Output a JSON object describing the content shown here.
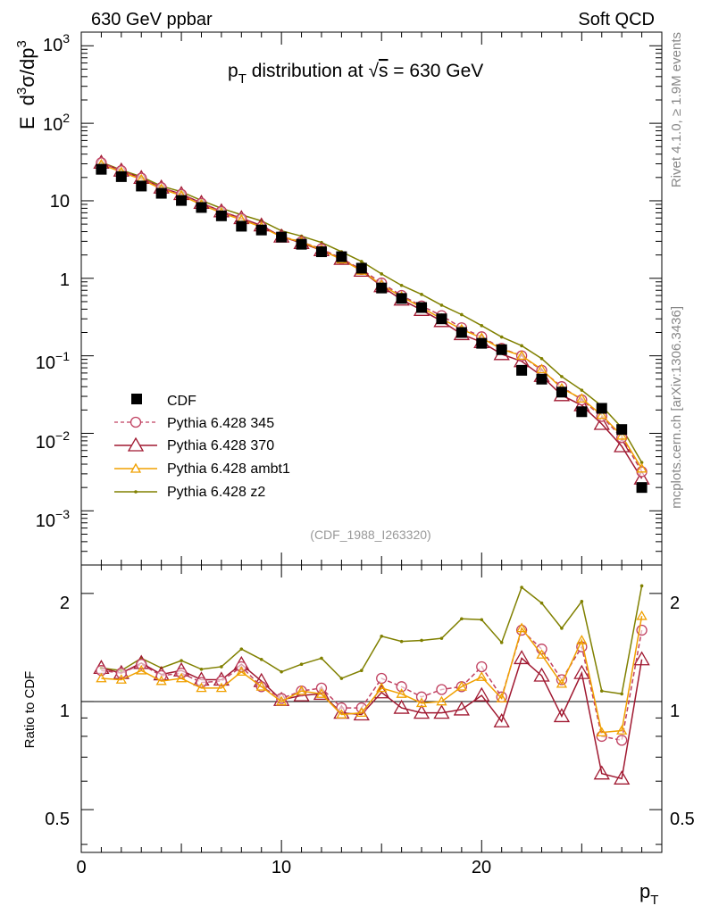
{
  "header": {
    "left": "630 GeV ppbar",
    "right": "Soft QCD"
  },
  "side_labels": {
    "rivet": "Rivet 4.1.0, ≥ 1.9M events",
    "mcplots": "mcplots.cern.ch [arXiv:1306.3436]"
  },
  "chart_data": [
    {
      "type": "line",
      "title": "p_T distribution at √s = 630 GeV",
      "title_parts": {
        "p": "p",
        "T": "T",
        "mid": " distribution at ",
        "sqrt": "√",
        "s": "s",
        "end": " = 630 GeV"
      },
      "ylabel": "E  d³σ/dp³",
      "ylabel_parts": {
        "E": "E",
        "d1": "d",
        "e1": "3",
        "sig": "σ/dp",
        "e2": "3"
      },
      "yscale": "log",
      "ylim": [
        0.0002,
        1500
      ],
      "xlim": [
        0,
        29
      ],
      "y_tick_labels": [
        "10^-3",
        "10^-2",
        "10^-1",
        "1",
        "10",
        "10^2",
        "10^3"
      ],
      "y_tick_text": {
        "p3": "10",
        "p3e": "3",
        "p2": "10",
        "p2e": "2",
        "p1": "10",
        "one": "1",
        "m1": "10",
        "m1e": "−1",
        "m2": "10",
        "m2e": "−2",
        "m3": "10",
        "m3e": "−3"
      },
      "annotation": "(CDF_1988_I263320)",
      "legend_position": "left",
      "x": [
        1,
        2,
        3,
        4,
        5,
        6,
        7,
        8,
        9,
        10,
        11,
        12,
        13,
        14,
        15,
        16,
        17,
        18,
        19,
        20,
        21,
        22,
        23,
        24,
        25,
        26,
        27,
        28
      ],
      "series": [
        {
          "name": "CDF",
          "color": "#000000",
          "marker": "square",
          "values": [
            25.5,
            20.5,
            15.5,
            12.5,
            10.1,
            8.2,
            6.4,
            4.7,
            4.2,
            3.4,
            2.75,
            2.2,
            1.9,
            1.35,
            0.75,
            0.55,
            0.42,
            0.3,
            0.2,
            0.145,
            0.12,
            0.065,
            0.05,
            0.034,
            0.019,
            0.021,
            0.0112,
            0.002
          ]
        },
        {
          "name": "Pythia 6.428 345",
          "color": "#c04060",
          "marker": "open-circle",
          "dashed": true,
          "values": [
            31,
            24.5,
            19.6,
            14.8,
            12.1,
            9.3,
            7.3,
            5.9,
            4.6,
            3.47,
            2.95,
            2.4,
            1.8,
            1.3,
            0.87,
            0.6,
            0.44,
            0.33,
            0.23,
            0.176,
            0.125,
            0.1,
            0.065,
            0.04,
            0.027,
            0.0165,
            0.0088,
            0.0032
          ]
        },
        {
          "name": "Pythia 6.428 370",
          "color": "#a01830",
          "marker": "open-triangle",
          "values": [
            31,
            24.5,
            19.7,
            14.8,
            12.2,
            9.4,
            7.3,
            5.97,
            4.8,
            3.45,
            2.85,
            2.3,
            1.78,
            1.25,
            0.79,
            0.53,
            0.39,
            0.28,
            0.19,
            0.15,
            0.105,
            0.085,
            0.055,
            0.031,
            0.023,
            0.0132,
            0.0068,
            0.0026
          ]
        },
        {
          "name": "Pythia 6.428 ambt1",
          "color": "#f0a000",
          "marker": "open-triangle",
          "values": [
            29.5,
            23.5,
            18.9,
            14.2,
            11.7,
            8.9,
            7.0,
            5.7,
            4.6,
            3.42,
            2.95,
            2.32,
            1.75,
            1.25,
            0.82,
            0.58,
            0.42,
            0.3,
            0.22,
            0.17,
            0.122,
            0.1,
            0.067,
            0.038,
            0.028,
            0.0172,
            0.0093,
            0.0035
          ]
        },
        {
          "name": "Pythia 6.428 z2",
          "color": "#808000",
          "marker": "dot",
          "values": [
            31.5,
            25,
            20.5,
            15.5,
            13.1,
            10.1,
            8.0,
            6.6,
            5.5,
            4.1,
            3.5,
            2.9,
            2.2,
            1.65,
            1.14,
            0.81,
            0.62,
            0.45,
            0.34,
            0.245,
            0.175,
            0.135,
            0.092,
            0.054,
            0.036,
            0.0225,
            0.0118,
            0.0042
          ]
        }
      ]
    },
    {
      "type": "line",
      "title": "",
      "ylabel": "Ratio to CDF",
      "xlabel": "p_T",
      "xlabel_parts": {
        "p": "p",
        "T": "T"
      },
      "ylim": [
        0.38,
        2.4
      ],
      "xlim": [
        0,
        29
      ],
      "x_tick_labels": [
        "0",
        "10",
        "20"
      ],
      "y_tick_labels": [
        "0.5",
        "1",
        "2"
      ],
      "reference_line": 1,
      "x": [
        1,
        2,
        3,
        4,
        5,
        6,
        7,
        8,
        9,
        10,
        11,
        12,
        13,
        14,
        15,
        16,
        17,
        18,
        19,
        20,
        21,
        22,
        23,
        24,
        25,
        26,
        27,
        28
      ],
      "series": [
        {
          "name": "Pythia 6.428 345",
          "color": "#c04060",
          "marker": "open-circle",
          "dashed": true,
          "values": [
            1.22,
            1.2,
            1.27,
            1.18,
            1.2,
            1.13,
            1.14,
            1.25,
            1.1,
            1.02,
            1.07,
            1.09,
            0.96,
            0.96,
            1.16,
            1.1,
            1.03,
            1.08,
            1.1,
            1.25,
            1.03,
            1.58,
            1.4,
            1.15,
            1.42,
            0.8,
            0.78,
            1.58
          ]
        },
        {
          "name": "Pythia 6.428 370",
          "color": "#a01830",
          "marker": "open-triangle",
          "values": [
            1.24,
            1.2,
            1.28,
            1.19,
            1.22,
            1.15,
            1.15,
            1.27,
            1.14,
            1.01,
            1.04,
            1.05,
            0.93,
            0.92,
            1.06,
            0.96,
            0.93,
            0.93,
            0.95,
            1.04,
            0.88,
            1.32,
            1.18,
            0.91,
            1.2,
            0.63,
            0.61,
            1.31
          ]
        },
        {
          "name": "Pythia 6.428 ambt1",
          "color": "#f0a000",
          "marker": "open-triangle",
          "values": [
            1.16,
            1.15,
            1.22,
            1.14,
            1.16,
            1.09,
            1.09,
            1.21,
            1.1,
            1.0,
            1.07,
            1.05,
            0.92,
            0.93,
            1.09,
            1.05,
            0.99,
            1.0,
            1.1,
            1.17,
            1.02,
            1.6,
            1.35,
            1.12,
            1.48,
            0.82,
            0.83,
            1.73
          ]
        },
        {
          "name": "Pythia 6.428 z2",
          "color": "#808000",
          "marker": "dot",
          "values": [
            1.24,
            1.22,
            1.32,
            1.24,
            1.3,
            1.23,
            1.25,
            1.4,
            1.31,
            1.21,
            1.27,
            1.32,
            1.16,
            1.22,
            1.52,
            1.47,
            1.48,
            1.5,
            1.7,
            1.69,
            1.46,
            2.08,
            1.88,
            1.6,
            1.9,
            1.07,
            1.05,
            2.1
          ]
        }
      ]
    }
  ]
}
